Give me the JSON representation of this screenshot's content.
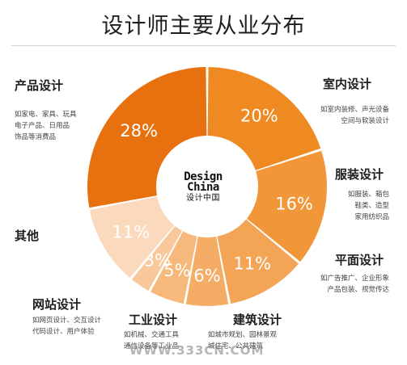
{
  "chart_data": {
    "type": "pie",
    "title": "设计师主要从业分布",
    "center_logo": {
      "line1": "Design",
      "line2": "China",
      "line3": "设计中国"
    },
    "slices": [
      {
        "label": "室内设计",
        "value": 20,
        "display": "20%",
        "color": "#ef8a23",
        "desc": "如室内装修、声光设备\n空间与软装设计"
      },
      {
        "label": "服装设计",
        "value": 16,
        "display": "16%",
        "color": "#f2963a",
        "desc": "如服装、箱包\n鞋类、造型\n家用纺织品"
      },
      {
        "label": "平面设计",
        "value": 11,
        "display": "11%",
        "color": "#f4a455",
        "desc": "如广告推广、企业形象\n产品包装、视觉传达"
      },
      {
        "label": "建筑设计",
        "value": 6,
        "display": "6%",
        "color": "#f5ad66",
        "desc": "如城市规划、园林景观\n城住宅、公共建筑"
      },
      {
        "label": "工业设计",
        "value": 5,
        "display": "5%",
        "color": "#f6b87b",
        "desc": "如机械、交通工具\n通信设备等工业品"
      },
      {
        "label": "网站设计",
        "value": 3,
        "display": "3%",
        "color": "#f8c79a",
        "desc": "如网页设计、交互设计\n代码设计、用户体验"
      },
      {
        "label": "其他",
        "value": 11,
        "display": "11%",
        "color": "#fad9bd",
        "desc": ""
      },
      {
        "label": "产品设计",
        "value": 28,
        "display": "28%",
        "color": "#e8710f",
        "desc": "如家电、家具、玩具\n电子产品、日用品\n饰品等消费品"
      }
    ]
  },
  "watermark": "WWW.333CN.COM"
}
